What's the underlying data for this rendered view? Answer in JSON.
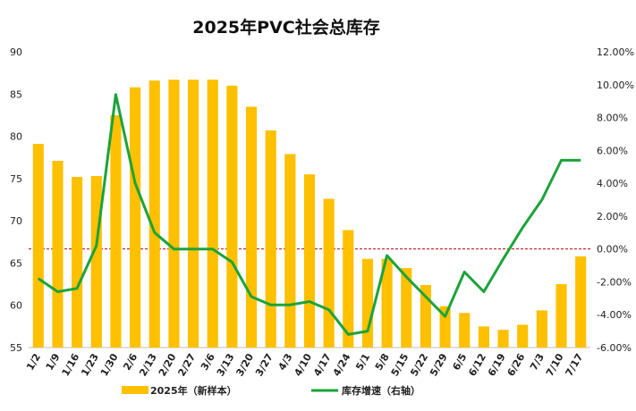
{
  "chart_data": {
    "type": "bar",
    "title": "2025年PVC社会总库存",
    "categories": [
      "1/2",
      "1/9",
      "1/16",
      "1/23",
      "1/30",
      "2/6",
      "2/13",
      "2/20",
      "2/27",
      "3/6",
      "3/13",
      "3/20",
      "3/27",
      "4/3",
      "4/10",
      "4/17",
      "4/24",
      "5/1",
      "5/8",
      "5/15",
      "5/22",
      "5/29",
      "6/5",
      "6/12",
      "6/19",
      "6/26",
      "7/3",
      "7/10",
      "7/17"
    ],
    "series": [
      {
        "name": "2025年（新样本）",
        "type": "bar",
        "axis": "left",
        "color": "#FFC000",
        "values": [
          79.1,
          77.1,
          75.2,
          75.3,
          82.5,
          85.8,
          86.6,
          86.7,
          86.7,
          86.7,
          86.0,
          83.5,
          80.7,
          77.9,
          75.5,
          72.6,
          68.9,
          65.5,
          65.5,
          64.4,
          62.4,
          59.9,
          59.1,
          57.5,
          57.1,
          57.7,
          59.4,
          62.5,
          65.8
        ]
      },
      {
        "name": "库存增速（右轴）",
        "type": "line",
        "axis": "right",
        "color": "#1AA33A",
        "values": [
          -1.8,
          -2.6,
          -2.4,
          0.2,
          9.4,
          4.0,
          1.0,
          0.0,
          0.0,
          0.0,
          -0.8,
          -2.9,
          -3.4,
          -3.4,
          -3.2,
          -3.7,
          -5.2,
          -5.0,
          -0.4,
          -1.7,
          -2.9,
          -4.1,
          -1.4,
          -2.6,
          -0.6,
          1.3,
          3.0,
          5.4,
          5.4
        ]
      }
    ],
    "y_left": {
      "min": 55,
      "max": 90,
      "ticks": [
        55,
        60,
        65,
        70,
        75,
        80,
        85,
        90
      ]
    },
    "y_right": {
      "min": -6,
      "max": 12,
      "ticks": [
        "-6.00%",
        "-4.00%",
        "-2.00%",
        "0.00%",
        "2.00%",
        "4.00%",
        "6.00%",
        "8.00%",
        "10.00%",
        "12.00%"
      ]
    },
    "reference_line": {
      "axis": "right",
      "value": 0,
      "style": "dashed",
      "color": "#C00000"
    },
    "grid": false,
    "legend": "bottom"
  }
}
